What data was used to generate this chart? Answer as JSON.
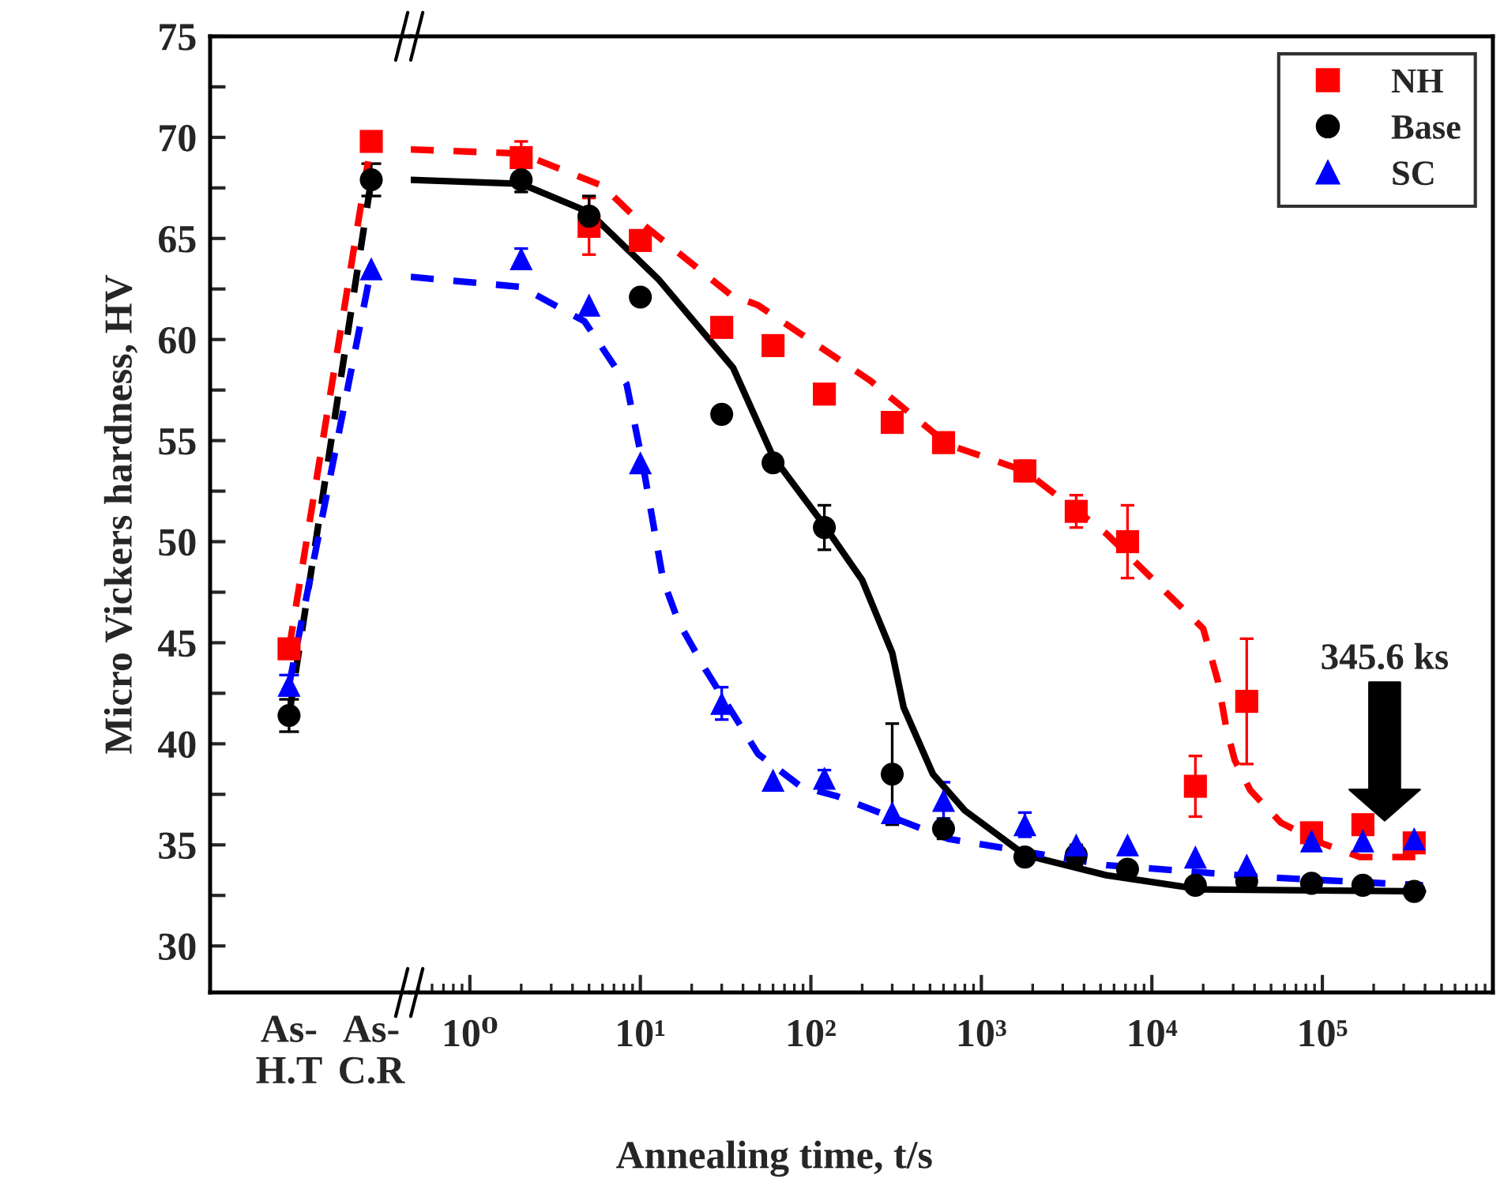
{
  "chart_data": [
    {
      "type": "line",
      "ylabel": "Micro Vickers hardness, HV",
      "categories": [
        "As-\nH.T",
        "As-\nC.R"
      ],
      "ylim": [
        27.7,
        75
      ],
      "yticks": [
        30,
        {
          "value": 32.5,
          "label": null
        },
        35,
        {
          "value": 37.5,
          "label": null
        },
        40,
        {
          "value": 42.5,
          "label": null
        },
        45,
        {
          "value": 47.5,
          "label": null
        },
        50,
        {
          "value": 52.5,
          "label": null
        },
        55,
        {
          "value": 57.5,
          "label": null
        },
        60,
        {
          "value": 62.5,
          "label": null
        },
        65,
        {
          "value": 67.5,
          "label": null
        },
        70,
        {
          "value": 72.5,
          "label": null
        },
        75
      ],
      "series": [
        {
          "color": "#ff0000",
          "values": [
            44.7,
            69.8
          ],
          "errors": [
            null,
            null
          ],
          "marker": "square",
          "line_style": "dashed"
        },
        {
          "color": "#000000",
          "values": [
            41.4,
            67.9
          ],
          "errors": [
            0.8,
            0.8
          ],
          "marker": "circle",
          "line_style": "dashed"
        },
        {
          "color": "#0000ff",
          "values": [
            42.9,
            63.5
          ],
          "errors": [
            0.5,
            null
          ],
          "marker": "triangle",
          "line_style": "dashed"
        }
      ]
    },
    {
      "type": "scatter",
      "xlabel": "Annealing time, t/s",
      "log": "x",
      "xlim": [
        0.45,
        1000000
      ],
      "ylim": [
        27.7,
        75
      ],
      "tick_labels": "x",
      "legend": "top right",
      "xticks": [
        {
          "value": 1,
          "label": "10⁰"
        },
        {
          "value": 10,
          "label": "10¹"
        },
        {
          "value": 100,
          "label": "10²"
        },
        {
          "value": 1000,
          "label": "10³"
        },
        {
          "value": 10000,
          "label": "10⁴"
        },
        {
          "value": 100000,
          "label": "10⁵"
        }
      ],
      "annotations": [
        "345.6 ks"
      ],
      "series": [
        {
          "name": "NH",
          "type": "scatter",
          "color": "#ff0000",
          "marker": "square",
          "x": [
            2,
            5,
            10,
            30,
            60,
            120,
            300,
            600,
            1800,
            3600,
            7200,
            18000,
            36000,
            86400,
            172800,
            345600
          ],
          "values": [
            69.0,
            65.6,
            64.9,
            60.6,
            59.7,
            57.3,
            55.9,
            54.9,
            53.5,
            51.5,
            50.0,
            37.9,
            42.1,
            35.6,
            36.0,
            35.1
          ],
          "errors": [
            0.8,
            1.4,
            null,
            null,
            null,
            null,
            null,
            null,
            0.5,
            0.8,
            1.8,
            1.5,
            3.1,
            null,
            null,
            null
          ]
        },
        {
          "name": "Base",
          "type": "scatter",
          "color": "#000000",
          "marker": "circle",
          "x": [
            2,
            5,
            10,
            30,
            60,
            120,
            300,
            600,
            1800,
            3600,
            7200,
            18000,
            36000,
            86400,
            172800,
            345600
          ],
          "values": [
            67.9,
            66.1,
            62.1,
            56.3,
            53.9,
            50.7,
            38.5,
            35.8,
            34.4,
            34.5,
            33.8,
            33.0,
            33.2,
            33.1,
            33.0,
            32.7
          ],
          "errors": [
            0.6,
            1.0,
            null,
            null,
            null,
            1.1,
            2.5,
            0.5,
            null,
            0.5,
            null,
            null,
            null,
            null,
            null,
            null
          ]
        },
        {
          "name": "SC",
          "type": "scatter",
          "color": "#0000ff",
          "marker": "triangle",
          "x": [
            2,
            5,
            10,
            30,
            60,
            120,
            300,
            600,
            1800,
            3600,
            7200,
            18000,
            36000,
            86400,
            172800,
            345600
          ],
          "values": [
            64.0,
            61.7,
            53.9,
            42.0,
            38.2,
            38.3,
            36.6,
            37.2,
            36.0,
            35.0,
            35.0,
            34.4,
            34.0,
            35.2,
            35.2,
            35.3
          ],
          "errors": [
            0.5,
            null,
            null,
            0.8,
            null,
            0.4,
            null,
            0.9,
            0.6,
            null,
            null,
            null,
            null,
            null,
            null,
            null
          ]
        },
        {
          "type": "line",
          "color": "#ff0000",
          "line_style": "dashed",
          "x": [
            0.45,
            2,
            6,
            10,
            34,
            49,
            220,
            640,
            1800,
            5400,
            12800,
            20000,
            24400,
            27300,
            30600,
            37800,
            57100,
            97600,
            166000,
            389000
          ],
          "values": [
            69.4,
            69.2,
            67.6,
            65.8,
            62.2,
            61.7,
            58.0,
            54.8,
            53.5,
            50.4,
            47.3,
            45.7,
            43.1,
            40.8,
            39.2,
            37.7,
            36.1,
            35.1,
            34.4,
            34.4
          ]
        },
        {
          "type": "line",
          "color": "#000000",
          "line_style": "solid",
          "x": [
            0.45,
            2,
            5,
            12.7,
            35,
            60,
            120,
            200,
            300,
            350,
            520,
            800,
            1800,
            5400,
            19600,
            389000
          ],
          "values": [
            67.9,
            67.7,
            66.3,
            63.0,
            58.6,
            54.2,
            50.8,
            48.1,
            44.5,
            41.8,
            38.5,
            36.7,
            34.5,
            33.5,
            32.8,
            32.7
          ]
        },
        {
          "type": "line",
          "color": "#0000ff",
          "line_style": "dashed",
          "x": [
            0.45,
            2,
            4.7,
            8.3,
            10.3,
            13.6,
            16.8,
            24,
            49,
            87,
            143,
            640,
            5400,
            46000,
            389000
          ],
          "values": [
            63.1,
            62.6,
            60.9,
            57.8,
            53.9,
            48.1,
            46.0,
            43.7,
            39.5,
            37.9,
            37.4,
            35.3,
            34.0,
            33.4,
            33.0
          ]
        }
      ]
    }
  ]
}
